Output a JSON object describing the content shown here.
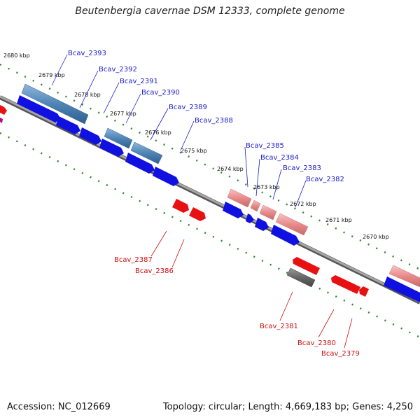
{
  "title": "Beutenbergia cavernae DSM 12333, complete genome",
  "footer": {
    "accession": "Accession: NC_012669",
    "summary": "Topology: circular; Length: 4,669,183 bp; Genes: 4,250"
  },
  "colors": {
    "backbone": "#8a8a8a",
    "tick_dots": "#2a8a2a",
    "forward_label": "#1a1acc",
    "reverse_label": "#cc1111",
    "cds_forward_dark": "#1010e0",
    "cds_forward_steel": "#4f84b5",
    "cds_reverse_red": "#e81010",
    "cds_reverse_pink": "#e88a8a",
    "cds_gray": "#666666"
  },
  "scale_labels": [
    "2680 kbp",
    "2679 kbp",
    "2678 kbp",
    "2677 kbp",
    "2676 kbp",
    "2675 kbp",
    "2674 kbp",
    "2673 kbp",
    "2672 kbp",
    "2671 kbp",
    "2670 kbp"
  ],
  "forward_genes": [
    "Bcav_2393",
    "Bcav_2392",
    "Bcav_2391",
    "Bcav_2390",
    "Bcav_2389",
    "Bcav_2388",
    "Bcav_2385",
    "Bcav_2384",
    "Bcav_2383",
    "Bcav_2382"
  ],
  "reverse_genes": [
    "Bcav_2387",
    "Bcav_2386",
    "Bcav_2381",
    "Bcav_2380",
    "Bcav_2379"
  ]
}
